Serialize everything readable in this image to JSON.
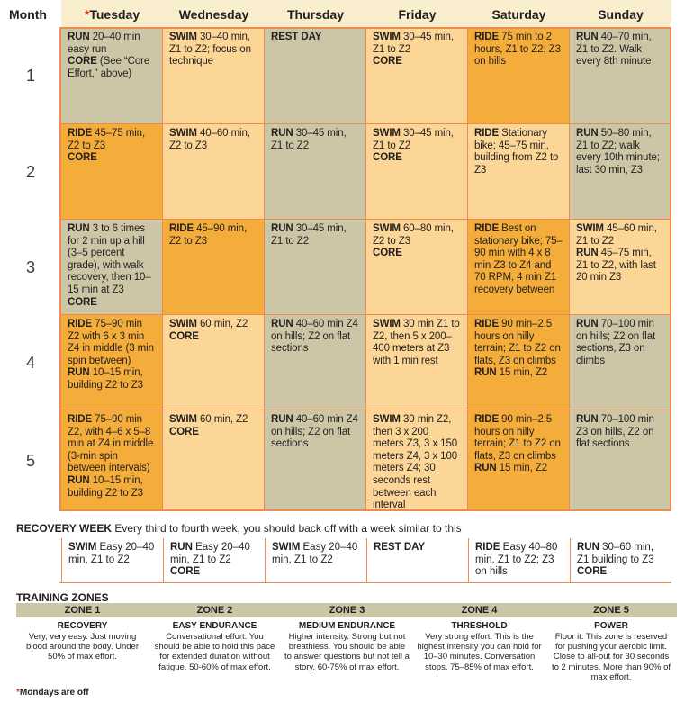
{
  "header": {
    "month": "Month",
    "star": "*",
    "days": [
      "Tuesday",
      "Wednesday",
      "Thursday",
      "Friday",
      "Saturday",
      "Sunday"
    ]
  },
  "months": [
    "1",
    "2",
    "3",
    "4",
    "5"
  ],
  "plan": [
    [
      {
        "tone": "gray",
        "parts": [
          [
            "RUN",
            " 20–40 min easy run"
          ],
          [
            "CORE",
            " (See “Core Effort,” above)"
          ]
        ]
      },
      {
        "tone": "light",
        "parts": [
          [
            "SWIM",
            " 30–40 min, Z1 to Z2; focus on technique"
          ]
        ]
      },
      {
        "tone": "gray",
        "parts": [
          [
            "REST DAY",
            ""
          ]
        ]
      },
      {
        "tone": "light",
        "parts": [
          [
            "SWIM",
            " 30–45 min, Z1 to Z2"
          ],
          [
            "CORE",
            ""
          ]
        ]
      },
      {
        "tone": "dark",
        "parts": [
          [
            "RIDE",
            " 75 min to 2 hours, Z1 to Z2; Z3 on hills"
          ]
        ]
      },
      {
        "tone": "gray",
        "parts": [
          [
            "RUN",
            " 40–70 min, Z1 to Z2. Walk every 8th minute"
          ]
        ]
      }
    ],
    [
      {
        "tone": "dark",
        "parts": [
          [
            "RIDE",
            " 45–75 min, Z2 to Z3"
          ],
          [
            "CORE",
            ""
          ]
        ]
      },
      {
        "tone": "light",
        "parts": [
          [
            "SWIM",
            " 40–60 min, Z2 to Z3"
          ]
        ]
      },
      {
        "tone": "gray",
        "parts": [
          [
            "RUN",
            " 30–45 min, Z1 to Z2"
          ]
        ]
      },
      {
        "tone": "light",
        "parts": [
          [
            "SWIM",
            " 30–45 min, Z1 to Z2"
          ],
          [
            "CORE",
            ""
          ]
        ]
      },
      {
        "tone": "light",
        "parts": [
          [
            "RIDE",
            " Stationary bike; 45–75 min, building from Z2 to Z3"
          ]
        ]
      },
      {
        "tone": "gray",
        "parts": [
          [
            "RUN",
            " 50–80 min, Z1 to Z2; walk every 10th minute; last 30 min, Z3"
          ]
        ]
      }
    ],
    [
      {
        "tone": "gray",
        "parts": [
          [
            "RUN",
            " 3 to 6 times for 2 min up a hill (3–5 percent grade), with walk recovery, then 10–15 min at Z3"
          ],
          [
            "CORE",
            ""
          ]
        ]
      },
      {
        "tone": "dark",
        "parts": [
          [
            "RIDE",
            " 45–90 min, Z2 to Z3"
          ]
        ]
      },
      {
        "tone": "gray",
        "parts": [
          [
            "RUN",
            " 30–45 min, Z1 to Z2"
          ]
        ]
      },
      {
        "tone": "light",
        "parts": [
          [
            "SWIM",
            " 60–80 min, Z2 to Z3"
          ],
          [
            "CORE",
            ""
          ]
        ]
      },
      {
        "tone": "dark",
        "parts": [
          [
            "RIDE",
            " Best on stationary bike; 75–90 min with 4 x 8 min Z3 to Z4 and 70 RPM, 4 min Z1 recovery between"
          ]
        ]
      },
      {
        "tone": "light",
        "parts": [
          [
            "SWIM",
            " 45–60 min, Z1 to Z2"
          ],
          [
            "RUN",
            " 45–75 min, Z1 to Z2, with last 20 min Z3"
          ]
        ]
      }
    ],
    [
      {
        "tone": "dark",
        "parts": [
          [
            "RIDE",
            " 75–90 min Z2 with 6 x 3 min Z4 in middle (3 min spin between)"
          ],
          [
            "RUN",
            " 10–15 min, building Z2 to Z3"
          ]
        ]
      },
      {
        "tone": "light",
        "parts": [
          [
            "SWIM",
            " 60 min, Z2"
          ],
          [
            "CORE",
            ""
          ]
        ]
      },
      {
        "tone": "gray",
        "parts": [
          [
            "RUN",
            " 40–60 min Z4 on hills; Z2 on flat sections"
          ]
        ]
      },
      {
        "tone": "light",
        "parts": [
          [
            "SWIM",
            " 30 min Z1 to Z2, then 5 x 200–400 meters at Z3 with 1 min rest"
          ]
        ]
      },
      {
        "tone": "dark",
        "parts": [
          [
            "RIDE",
            " 90 min–2.5 hours on hilly terrain; Z1 to Z2 on flats, Z3 on climbs"
          ],
          [
            "RUN",
            " 15 min, Z2"
          ]
        ]
      },
      {
        "tone": "gray",
        "parts": [
          [
            "RUN",
            " 70–100 min on hills; Z2 on flat sections, Z3 on climbs"
          ]
        ]
      }
    ],
    [
      {
        "tone": "dark",
        "parts": [
          [
            "RIDE",
            " 75–90 min Z2, with 4–6 x 5–8 min at Z4 in middle (3-min spin between intervals)"
          ],
          [
            "RUN",
            " 10–15 min, building Z2 to Z3"
          ]
        ]
      },
      {
        "tone": "light",
        "parts": [
          [
            "SWIM",
            " 60 min, Z2"
          ],
          [
            "CORE",
            ""
          ]
        ]
      },
      {
        "tone": "gray",
        "parts": [
          [
            "RUN",
            " 40–60 min Z4 on hills; Z2 on flat sections"
          ]
        ]
      },
      {
        "tone": "light",
        "parts": [
          [
            "SWIM",
            " 30 min Z2, then 3 x 200 meters Z3, 3 x 150 meters Z4, 3 x 100 meters Z4; 30 seconds rest between each interval"
          ]
        ]
      },
      {
        "tone": "dark",
        "parts": [
          [
            "RIDE",
            " 90 min–2.5 hours on hilly terrain; Z1 to Z2 on flats, Z3 on climbs"
          ],
          [
            "RUN",
            " 15 min, Z2"
          ]
        ]
      },
      {
        "tone": "gray",
        "parts": [
          [
            "RUN",
            " 70–100 min Z3 on hills, Z2 on flat sections"
          ]
        ]
      }
    ]
  ],
  "recovery": {
    "title": "RECOVERY WEEK",
    "text": " Every third to fourth week, you should back off with a week similar to this",
    "days": [
      {
        "parts": [
          [
            "SWIM",
            " Easy 20–40 min, Z1 to Z2"
          ]
        ]
      },
      {
        "parts": [
          [
            "RUN",
            " Easy  20–40 min, Z1 to Z2"
          ],
          [
            "CORE",
            ""
          ]
        ]
      },
      {
        "parts": [
          [
            "SWIM",
            " Easy 20–40 min, Z1 to Z2"
          ]
        ]
      },
      {
        "parts": [
          [
            "REST DAY",
            ""
          ]
        ]
      },
      {
        "parts": [
          [
            "RIDE",
            " Easy 40–80 min, Z1 to Z2; Z3 on hills"
          ]
        ]
      },
      {
        "parts": [
          [
            "RUN",
            " 30–60 min, Z1 building to Z3"
          ],
          [
            "CORE",
            ""
          ]
        ]
      }
    ]
  },
  "zones": {
    "title": "TRAINING ZONES",
    "items": [
      {
        "head": "ZONE 1",
        "name": "RECOVERY",
        "desc": "Very, very easy. Just moving blood around the body. Under 50% of max effort."
      },
      {
        "head": "ZONE 2",
        "name": "EASY ENDURANCE",
        "desc": "Conversational effort. You should be able to hold this pace for extended duration without fatigue. 50-60% of max effort."
      },
      {
        "head": "ZONE 3",
        "name": "MEDIUM ENDURANCE",
        "desc": "Higher intensity. Strong but not breathless. You should be able to answer questions but not tell a story. 60-75% of max effort."
      },
      {
        "head": "ZONE 4",
        "name": "THRESHOLD",
        "desc": "Very strong effort. This is the highest intensity you can hold for 10–30 minutes. Conversation stops. 75–85% of max effort."
      },
      {
        "head": "ZONE 5",
        "name": "POWER",
        "desc": "Floor it. This zone is reserved for pushing your aerobic limit. Close to all-out for 30 seconds to 2 minutes. More than 90% of max effort."
      }
    ]
  },
  "footnote": {
    "star": "*",
    "text": "Mondays are off"
  },
  "colors": {
    "gray": "#cdc6a6",
    "light": "#fbd696",
    "dark": "#f4ad3a",
    "border": "#ef8a4c",
    "accent": "#e2402d"
  }
}
